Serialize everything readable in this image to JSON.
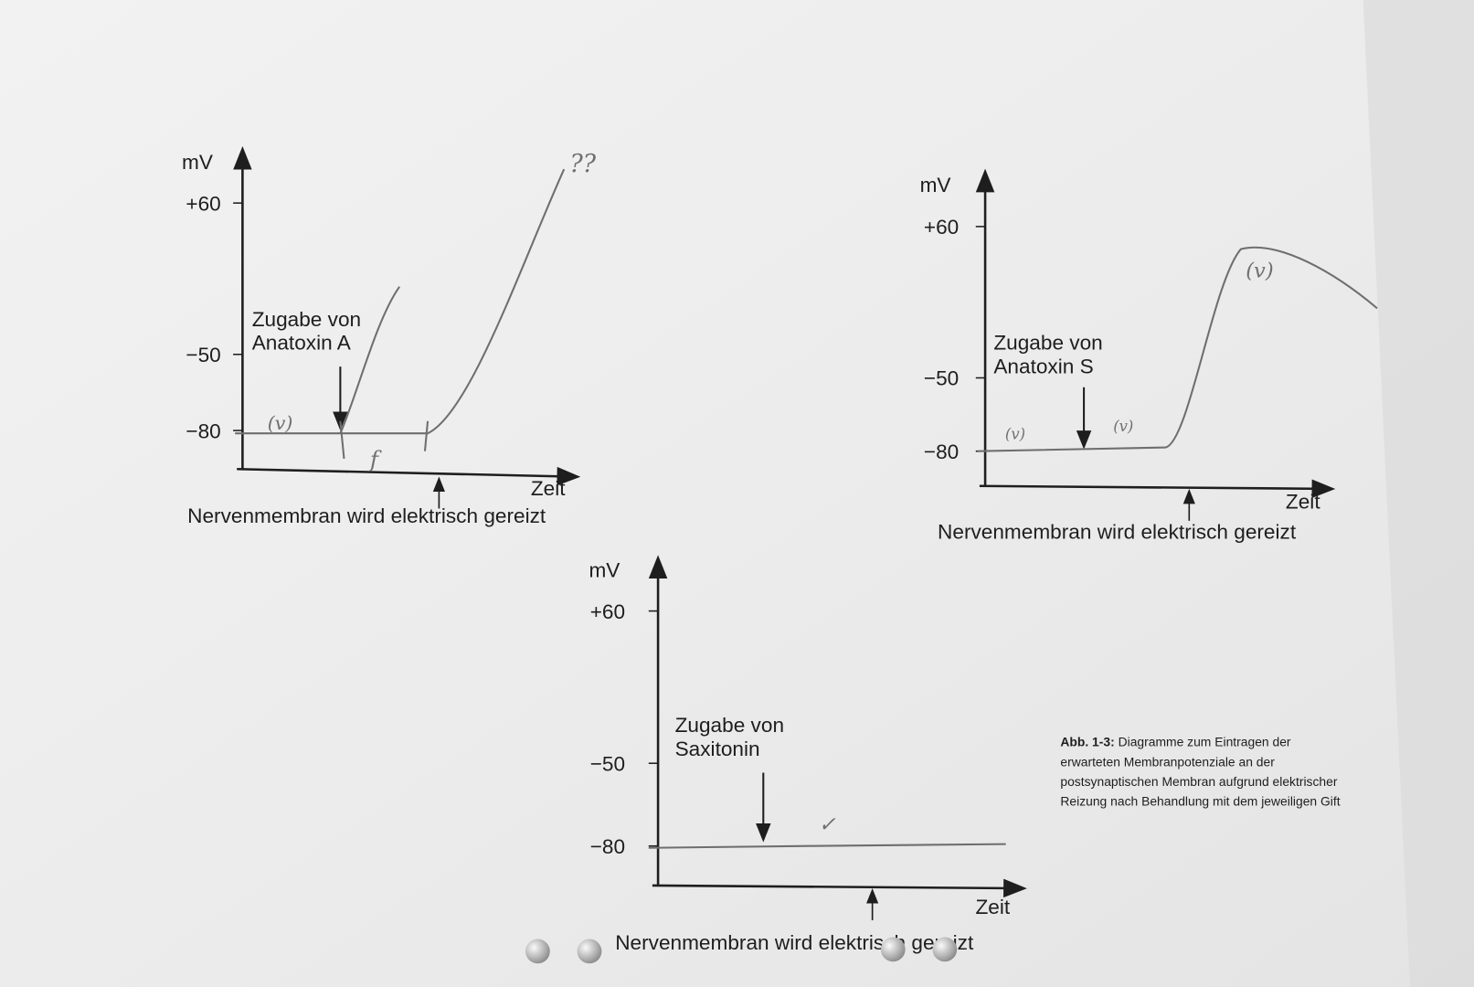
{
  "diagrams": [
    {
      "y_axis_label": "mV",
      "y_ticks": [
        "+60",
        "−50",
        "−80"
      ],
      "annotation": [
        "Zugabe von",
        "Anatoxin A"
      ],
      "x_axis_label": "Zeit",
      "stimulus_label": "Nervenmembran wird elektrisch gereizt",
      "handwriting": [
        "(v)",
        "??",
        "f"
      ]
    },
    {
      "y_axis_label": "mV",
      "y_ticks": [
        "+60",
        "−50",
        "−80"
      ],
      "annotation": [
        "Zugabe von",
        "Anatoxin S"
      ],
      "x_axis_label": "Zeit",
      "stimulus_label": "Nervenmembran wird elektrisch gereizt",
      "handwriting": [
        "(v)",
        "(v)",
        "(v)"
      ]
    },
    {
      "y_axis_label": "mV",
      "y_ticks": [
        "+60",
        "−50",
        "−80"
      ],
      "annotation": [
        "Zugabe von",
        "Saxitonin"
      ],
      "x_axis_label": "Zeit",
      "stimulus_label": "Nervenmembran wird elektrisch gereizt",
      "handwriting": [
        "✓"
      ]
    }
  ],
  "caption": {
    "label": "Abb. 1-3:",
    "lines": [
      "Diagramme zum Eintragen der",
      "erwarteten Membranpotenziale an der",
      "postsynaptischen Membran aufgrund elektrischer",
      "Reizung nach Behandlung mit dem jeweiligen Gift"
    ]
  }
}
